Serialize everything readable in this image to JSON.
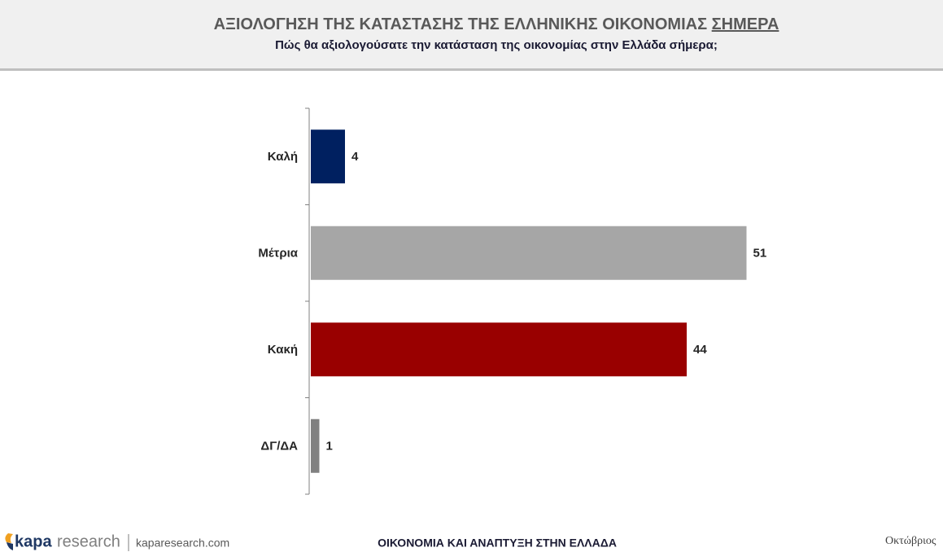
{
  "chart_data": {
    "type": "hbar",
    "title": [
      "ΑΞΙΟΛΟΓΗΣΗ ΤΗΣ ΚΑΤΑΣΤΑΣΗΣ ΤΗΣ ΕΛΛΗΝΙΚΗΣ ΟΙΚΟΝΟΜΙΑΣ",
      "ΣΗΜΕΡΑ"
    ],
    "subtitle": "Πώς θα αξιολογούσατε την κατάσταση της οικονομίας στην Ελλάδα σήμερα;",
    "categories": [
      "Καλή",
      "Μέτρια",
      "Κακή",
      "ΔΓ/ΔΑ"
    ],
    "values": [
      4,
      51,
      44,
      1
    ],
    "colors": [
      "#002060",
      "#a6a6a6",
      "#990000",
      "#808080"
    ],
    "xlim": [
      0,
      60
    ]
  },
  "footer": {
    "logo": [
      "kapa",
      "research"
    ],
    "website": "kaparesearch.com",
    "center": "ΟΙΚΟΝΟΜΙΑ ΚΑΙ ΑΝΑΠΤΥΞΗ ΣΤΗΝ ΕΛΛΑΔΑ",
    "date": "Οκτώβριος"
  }
}
